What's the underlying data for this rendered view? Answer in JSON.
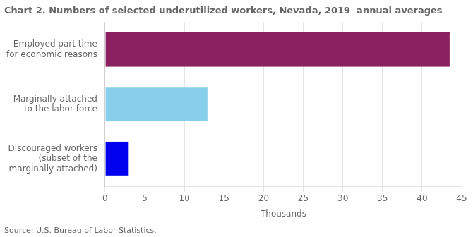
{
  "chart_data": {
    "type": "bar",
    "orientation": "horizontal",
    "title": "Chart 2. Numbers of selected underutilized workers, Nevada, 2019  annual averages",
    "categories": [
      "Discouraged workers\n(subset of the\nmarginally attached)",
      "Marginally attached\nto the labor force",
      "Employed part time\nfor economic reasons"
    ],
    "values": [
      3.0,
      13.0,
      43.5
    ],
    "colors": [
      "#0000EE",
      "#87CEEB",
      "#8B2060"
    ],
    "xlim": [
      0,
      45
    ],
    "xticks": [
      0,
      5,
      10,
      15,
      20,
      25,
      30,
      35,
      40,
      45
    ],
    "xlabel": "Thousands",
    "grid": true,
    "annotations": [
      "Source: U.S. Bureau of Labor Statistics."
    ]
  }
}
